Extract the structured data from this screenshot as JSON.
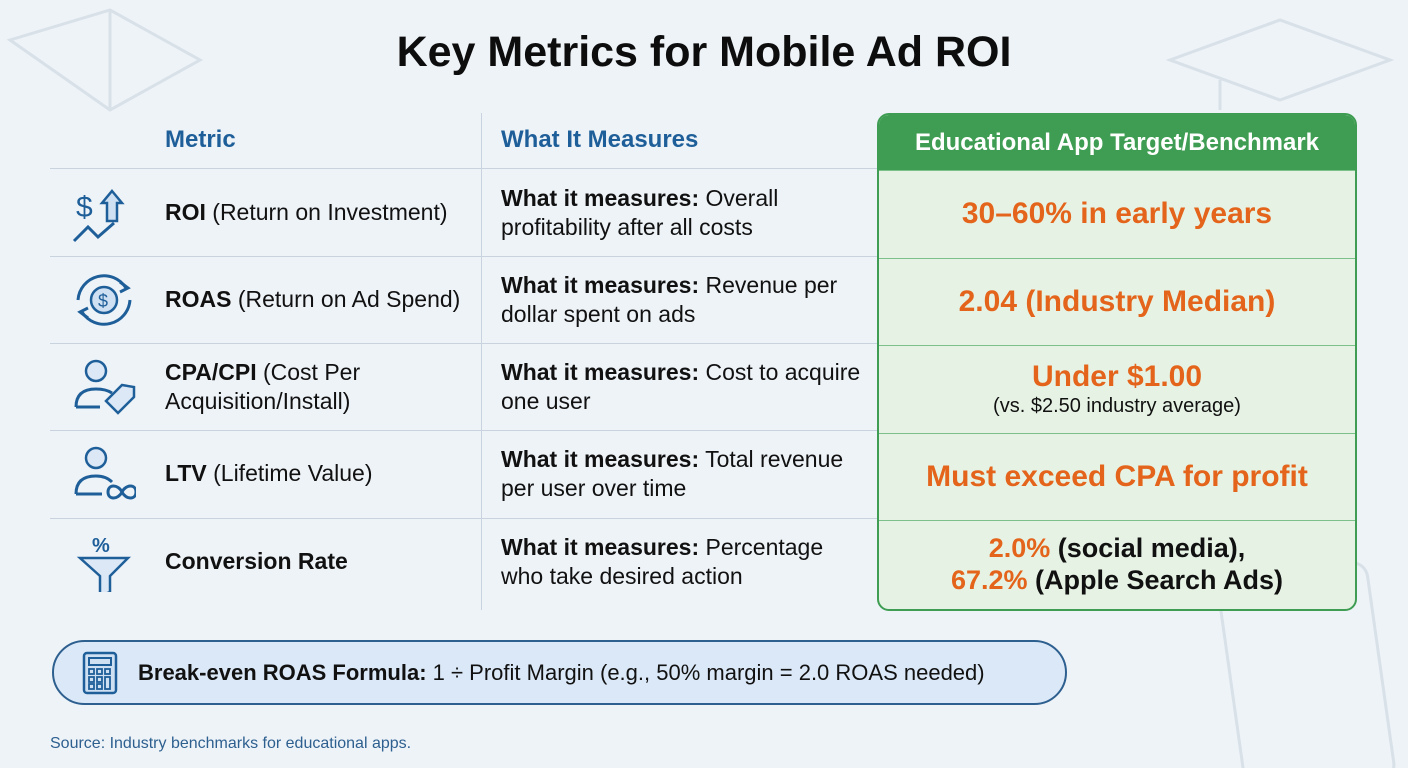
{
  "title": "Key Metrics for Mobile Ad ROI",
  "headers": {
    "metric": "Metric",
    "measures": "What It Measures",
    "target": "Educational App Target/Benchmark"
  },
  "rows": [
    {
      "icon": "dollar-growth-icon",
      "metric_bold": "ROI",
      "metric_rest": " (Return on Investment)",
      "measures_label": "What it measures:",
      "measures_text": " Overall profitability after all costs",
      "target": "30–60% in early years"
    },
    {
      "icon": "dollar-cycle-icon",
      "metric_bold": "ROAS",
      "metric_rest": " (Return on Ad Spend)",
      "measures_label": "What it measures:",
      "measures_text": " Revenue per dollar spent on ads",
      "target": "2.04 (Industry Median)"
    },
    {
      "icon": "user-tag-icon",
      "metric_bold": "CPA/CPI",
      "metric_rest": " (Cost Per Acquisition/Install)",
      "measures_label": "What it measures:",
      "measures_text": " Cost to acquire one user",
      "target": "Under $1.00",
      "target_sub": "(vs. $2.50 industry average)"
    },
    {
      "icon": "user-infinity-icon",
      "metric_bold": "LTV",
      "metric_rest": " (Lifetime Value)",
      "measures_label": "What it measures:",
      "measures_text": " Total revenue per user over time",
      "target": "Must exceed CPA for profit"
    },
    {
      "icon": "percent-funnel-icon",
      "metric_bold": "Conversion Rate",
      "metric_rest": "",
      "measures_label": "What it measures:",
      "measures_text": " Percentage who take desired action",
      "target_a": "2.0%",
      "target_a_rest": " (social media),",
      "target_b": "67.2%",
      "target_b_rest": " (Apple Search Ads)"
    }
  ],
  "formula": {
    "label": "Break-even ROAS Formula:",
    "text": " 1 ÷ Profit Margin (e.g., 50% margin = 2.0 ROAS needed)",
    "icon": "calculator-icon"
  },
  "source": "Source: Industry benchmarks for educational apps.",
  "colors": {
    "accent_blue": "#1f5f99",
    "green": "#3e9d52",
    "orange": "#e3641a"
  }
}
